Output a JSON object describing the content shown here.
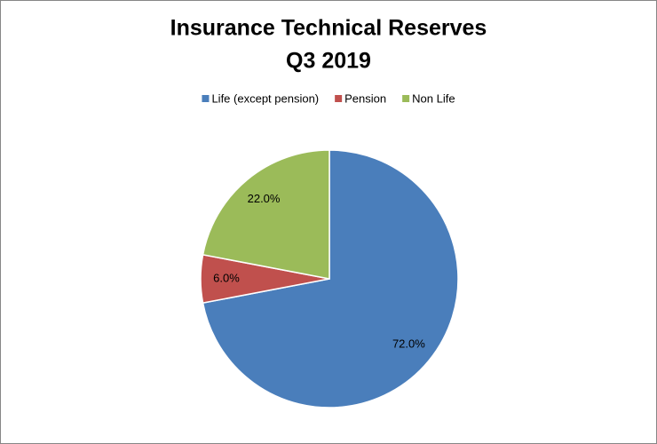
{
  "chart_data": {
    "type": "pie",
    "title": "Insurance Technical Reserves",
    "subtitle": "Q3 2019",
    "categories": [
      "Life (except pension)",
      "Pension",
      "Non Life"
    ],
    "values": [
      72,
      6,
      22
    ],
    "value_labels": [
      "72.0%",
      "6.0%",
      "22.0%"
    ],
    "colors": [
      "#4a7ebb",
      "#c0504d",
      "#9bbb59"
    ],
    "legend": "top"
  }
}
